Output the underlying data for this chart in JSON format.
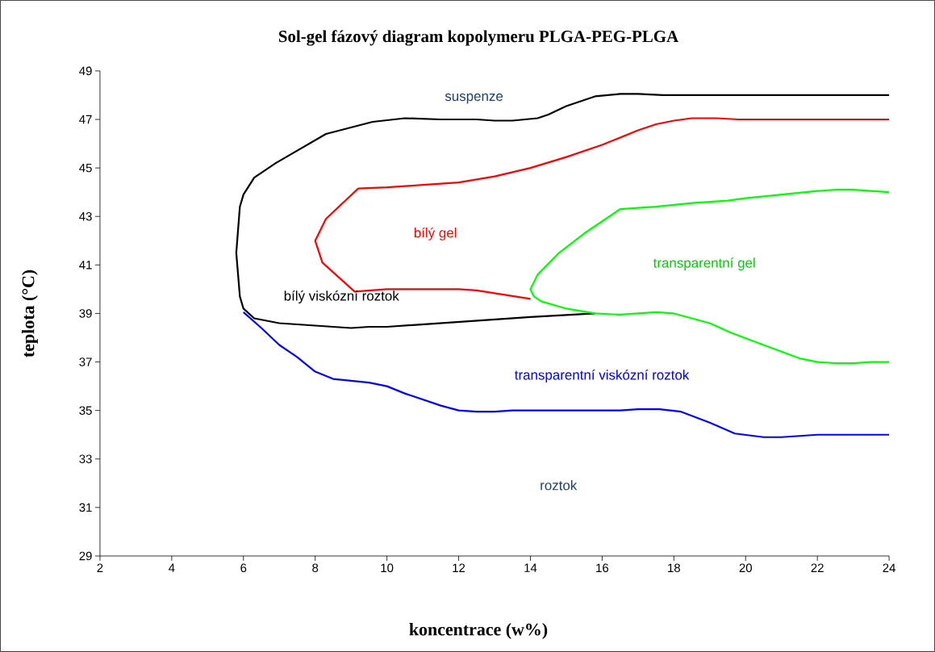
{
  "chart_data": {
    "type": "line",
    "title": "Sol-gel fázový diagram kopolymeru PLGA-PEG-PLGA",
    "xlabel": "koncentrace (w%)",
    "ylabel": "teplota (°C)",
    "xlim": [
      2,
      24
    ],
    "ylim": [
      29,
      49
    ],
    "xticks": [
      2,
      4,
      6,
      8,
      10,
      12,
      14,
      16,
      18,
      20,
      22,
      24
    ],
    "yticks": [
      29,
      31,
      33,
      35,
      37,
      39,
      41,
      43,
      45,
      47,
      49
    ],
    "grid": false,
    "marker": "none",
    "line_style": "solid",
    "series": [
      {
        "color": "#000000",
        "x": [
          15.8,
          14,
          12,
          10,
          9.5,
          9,
          8,
          7,
          6.3,
          6,
          5.9,
          5.8,
          5.9,
          6.0,
          6.3,
          6.9,
          8.3,
          9.6,
          10.5,
          11.5,
          12.5,
          13,
          13.5,
          14.2,
          14.5,
          15,
          15.8,
          16.5,
          17,
          17.7,
          24
        ],
        "values": [
          39.0,
          38.85,
          38.65,
          38.45,
          38.45,
          38.4,
          38.5,
          38.6,
          38.8,
          39.2,
          39.7,
          41.5,
          43.4,
          43.9,
          44.6,
          45.2,
          46.4,
          46.9,
          47.05,
          47.0,
          47.0,
          46.95,
          46.95,
          47.05,
          47.2,
          47.55,
          47.95,
          48.05,
          48.05,
          48.0,
          48.0
        ]
      },
      {
        "color": "#ff0000",
        "x": [
          14,
          12.5,
          12,
          10,
          9.1,
          8.8,
          8.2,
          8,
          8.3,
          8.8,
          9.2,
          10,
          11,
          12,
          13,
          14,
          15,
          16,
          16.5,
          17,
          17.5,
          18,
          18.5,
          19.2,
          19.8,
          24
        ],
        "values": [
          39.6,
          39.95,
          40.0,
          40.0,
          39.9,
          40.3,
          41.1,
          42.0,
          42.9,
          43.6,
          44.15,
          44.2,
          44.3,
          44.4,
          44.65,
          45.0,
          45.45,
          45.95,
          46.25,
          46.55,
          46.8,
          46.95,
          47.05,
          47.05,
          47.0,
          47.0
        ]
      },
      {
        "color": "#00ff00",
        "x": [
          24,
          23.5,
          23,
          22.5,
          22,
          21.5,
          20.5,
          19.6,
          19,
          18,
          17.5,
          16.5,
          15.8,
          15,
          14.3,
          14.1,
          14,
          14.2,
          14.8,
          15.5,
          16,
          16.5,
          17,
          17.5,
          18.5,
          19.5,
          20,
          21,
          22,
          22.5,
          23,
          24
        ],
        "values": [
          37.0,
          37.0,
          36.95,
          36.95,
          37.0,
          37.15,
          37.7,
          38.2,
          38.6,
          39.0,
          39.05,
          38.95,
          39.0,
          39.2,
          39.5,
          39.7,
          40.0,
          40.6,
          41.5,
          42.3,
          42.8,
          43.3,
          43.35,
          43.4,
          43.55,
          43.65,
          43.75,
          43.9,
          44.05,
          44.1,
          44.1,
          44.0
        ]
      },
      {
        "color": "#0000ff",
        "x": [
          6,
          6.5,
          7,
          7.5,
          8,
          8.5,
          9.5,
          10,
          10.5,
          11.5,
          12,
          12.5,
          13,
          13.5,
          16,
          16.5,
          17,
          17.6,
          18.2,
          19,
          19.7,
          20.5,
          21,
          21.5,
          22,
          24
        ],
        "values": [
          39.05,
          38.4,
          37.7,
          37.2,
          36.6,
          36.3,
          36.15,
          36.0,
          35.7,
          35.2,
          35.0,
          34.95,
          34.95,
          35.0,
          35.0,
          35.0,
          35.05,
          35.05,
          34.95,
          34.5,
          34.05,
          33.9,
          33.9,
          33.95,
          34.0,
          34.0
        ]
      }
    ],
    "annotations": [
      "suspenze",
      "bílý gel",
      "transparentní gel",
      "bílý viskózní roztok",
      "transparentní viskózní roztok",
      "roztok"
    ]
  }
}
